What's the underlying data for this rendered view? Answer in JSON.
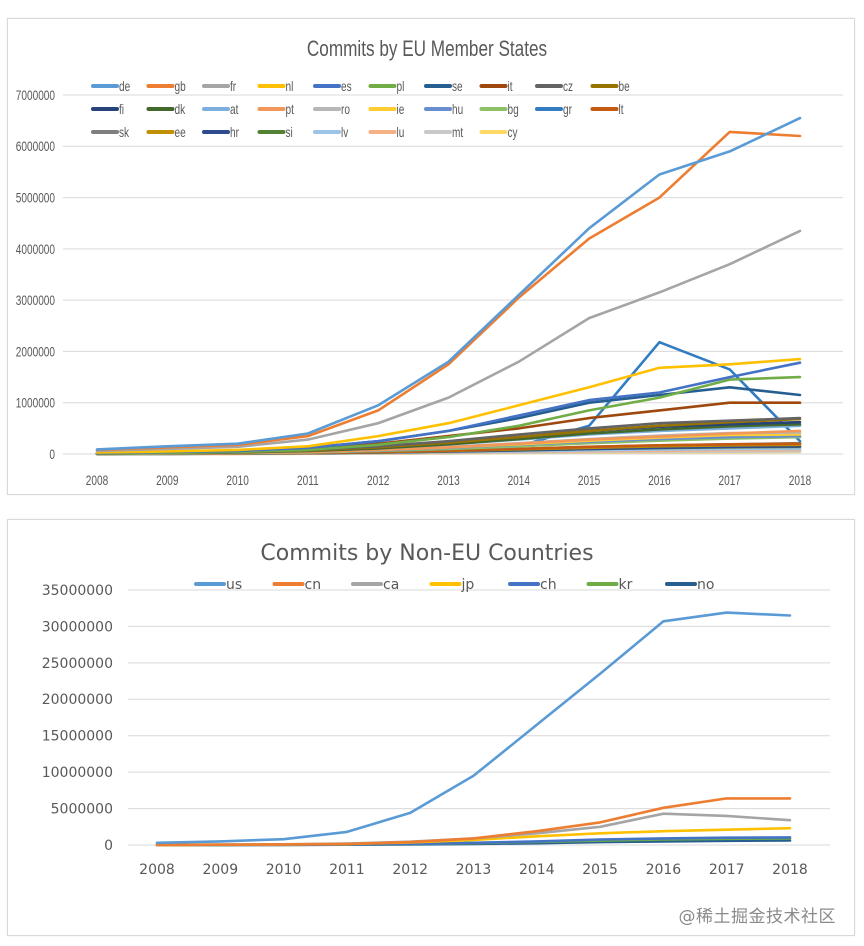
{
  "chart_data": [
    {
      "type": "line",
      "title": "Commits by EU Member States",
      "xlabel": "",
      "ylabel": "",
      "x": [
        "2008",
        "2009",
        "2010",
        "2011",
        "2012",
        "2013",
        "2014",
        "2015",
        "2016",
        "2017",
        "2018"
      ],
      "ylim": [
        0,
        7000000
      ],
      "yticks": [
        0,
        1000000,
        2000000,
        3000000,
        4000000,
        5000000,
        6000000,
        7000000
      ],
      "ytick_labels": [
        "0",
        "1000000",
        "2000000",
        "3000000",
        "4000000",
        "5000000",
        "6000000",
        "7000000"
      ],
      "grid": true,
      "legend_position": "top",
      "series": [
        {
          "name": "de",
          "color": "#5b9bd5",
          "values": [
            90000,
            150000,
            200000,
            400000,
            950000,
            1800000,
            3100000,
            4400000,
            5450000,
            5900000,
            6550000
          ]
        },
        {
          "name": "gb",
          "color": "#ed7d31",
          "values": [
            80000,
            130000,
            180000,
            350000,
            850000,
            1750000,
            3050000,
            4200000,
            5000000,
            6280000,
            6200000
          ]
        },
        {
          "name": "fr",
          "color": "#a5a5a5",
          "values": [
            60000,
            100000,
            140000,
            280000,
            600000,
            1100000,
            1800000,
            2650000,
            3150000,
            3700000,
            4350000
          ]
        },
        {
          "name": "nl",
          "color": "#ffc000",
          "values": [
            30000,
            50000,
            80000,
            150000,
            350000,
            600000,
            950000,
            1300000,
            1680000,
            1750000,
            1850000
          ]
        },
        {
          "name": "es",
          "color": "#4472c4",
          "values": [
            20000,
            40000,
            60000,
            120000,
            250000,
            450000,
            750000,
            1050000,
            1200000,
            1500000,
            1780000
          ]
        },
        {
          "name": "pl",
          "color": "#70ad47",
          "values": [
            10000,
            20000,
            40000,
            80000,
            180000,
            330000,
            550000,
            850000,
            1100000,
            1450000,
            1500000
          ]
        },
        {
          "name": "se",
          "color": "#255e91",
          "values": [
            20000,
            40000,
            60000,
            120000,
            250000,
            450000,
            700000,
            1000000,
            1150000,
            1300000,
            1150000
          ]
        },
        {
          "name": "it",
          "color": "#9e480e",
          "values": [
            15000,
            30000,
            50000,
            100000,
            200000,
            350000,
            500000,
            700000,
            850000,
            1000000,
            1000000
          ]
        },
        {
          "name": "cz",
          "color": "#636363",
          "values": [
            10000,
            20000,
            40000,
            80000,
            150000,
            250000,
            380000,
            500000,
            600000,
            650000,
            700000
          ]
        },
        {
          "name": "be",
          "color": "#997300",
          "values": [
            10000,
            20000,
            35000,
            70000,
            130000,
            220000,
            330000,
            450000,
            550000,
            620000,
            680000
          ]
        },
        {
          "name": "fi",
          "color": "#264478",
          "values": [
            10000,
            20000,
            35000,
            70000,
            130000,
            220000,
            330000,
            450000,
            530000,
            580000,
            620000
          ]
        },
        {
          "name": "dk",
          "color": "#43682b",
          "values": [
            10000,
            15000,
            30000,
            60000,
            110000,
            190000,
            290000,
            400000,
            480000,
            540000,
            580000
          ]
        },
        {
          "name": "at",
          "color": "#7cafdd",
          "values": [
            10000,
            15000,
            30000,
            60000,
            110000,
            190000,
            280000,
            380000,
            450000,
            500000,
            550000
          ]
        },
        {
          "name": "pt",
          "color": "#f1975a",
          "values": [
            5000,
            10000,
            20000,
            40000,
            80000,
            130000,
            200000,
            280000,
            340000,
            400000,
            450000
          ]
        },
        {
          "name": "ro",
          "color": "#b7b7b7",
          "values": [
            5000,
            10000,
            20000,
            40000,
            80000,
            140000,
            210000,
            290000,
            360000,
            410000,
            420000
          ]
        },
        {
          "name": "ie",
          "color": "#ffcd33",
          "values": [
            5000,
            10000,
            20000,
            40000,
            80000,
            130000,
            190000,
            260000,
            320000,
            370000,
            380000
          ]
        },
        {
          "name": "hu",
          "color": "#698ed0",
          "values": [
            5000,
            10000,
            20000,
            40000,
            70000,
            120000,
            180000,
            240000,
            290000,
            330000,
            350000
          ]
        },
        {
          "name": "bg",
          "color": "#8cc168",
          "values": [
            5000,
            10000,
            15000,
            30000,
            60000,
            100000,
            150000,
            210000,
            260000,
            300000,
            330000
          ]
        },
        {
          "name": "gr",
          "color": "#327dc2",
          "values": [
            5000,
            10000,
            15000,
            30000,
            60000,
            100000,
            150000,
            550000,
            2180000,
            1650000,
            250000
          ]
        },
        {
          "name": "lt",
          "color": "#c55a11",
          "values": [
            3000,
            6000,
            10000,
            20000,
            40000,
            70000,
            100000,
            140000,
            170000,
            190000,
            200000
          ]
        },
        {
          "name": "sk",
          "color": "#7f7f7f",
          "values": [
            3000,
            6000,
            10000,
            20000,
            40000,
            70000,
            100000,
            140000,
            170000,
            190000,
            210000
          ]
        },
        {
          "name": "ee",
          "color": "#bf9000",
          "values": [
            3000,
            6000,
            10000,
            20000,
            35000,
            60000,
            90000,
            120000,
            150000,
            170000,
            180000
          ]
        },
        {
          "name": "hr",
          "color": "#2f4b8f",
          "values": [
            2000,
            4000,
            8000,
            15000,
            30000,
            50000,
            75000,
            100000,
            120000,
            140000,
            150000
          ]
        },
        {
          "name": "si",
          "color": "#548235",
          "values": [
            2000,
            4000,
            8000,
            15000,
            30000,
            50000,
            70000,
            95000,
            115000,
            130000,
            140000
          ]
        },
        {
          "name": "lv",
          "color": "#9dc3e6",
          "values": [
            1000,
            3000,
            5000,
            10000,
            20000,
            35000,
            50000,
            70000,
            85000,
            95000,
            100000
          ]
        },
        {
          "name": "lu",
          "color": "#f4b183",
          "values": [
            1000,
            2000,
            4000,
            8000,
            15000,
            25000,
            40000,
            55000,
            65000,
            75000,
            80000
          ]
        },
        {
          "name": "mt",
          "color": "#c9c9c9",
          "values": [
            500,
            1000,
            2000,
            5000,
            10000,
            15000,
            25000,
            35000,
            40000,
            45000,
            50000
          ]
        },
        {
          "name": "cy",
          "color": "#ffd966",
          "values": [
            500,
            1000,
            2000,
            4000,
            8000,
            12000,
            20000,
            28000,
            32000,
            36000,
            40000
          ]
        }
      ]
    },
    {
      "type": "line",
      "title": "Commits by Non-EU Countries",
      "xlabel": "",
      "ylabel": "",
      "x": [
        "2008",
        "2009",
        "2010",
        "2011",
        "2012",
        "2013",
        "2014",
        "2015",
        "2016",
        "2017",
        "2018"
      ],
      "ylim": [
        0,
        35000000
      ],
      "yticks": [
        0,
        5000000,
        10000000,
        15000000,
        20000000,
        25000000,
        30000000,
        35000000
      ],
      "ytick_labels": [
        "0",
        "5000000",
        "10000000",
        "15000000",
        "20000000",
        "25000000",
        "30000000",
        "35000000"
      ],
      "grid": true,
      "legend_position": "top",
      "series": [
        {
          "name": "us",
          "color": "#5b9bd5",
          "values": [
            300000,
            500000,
            800000,
            1800000,
            4400000,
            9500000,
            16500000,
            23500000,
            30700000,
            31900000,
            31500000
          ]
        },
        {
          "name": "cn",
          "color": "#ed7d31",
          "values": [
            20000,
            40000,
            80000,
            150000,
            400000,
            900000,
            1900000,
            3100000,
            5100000,
            6400000,
            6400000
          ]
        },
        {
          "name": "ca",
          "color": "#a5a5a5",
          "values": [
            30000,
            50000,
            100000,
            200000,
            450000,
            900000,
            1600000,
            2500000,
            4300000,
            4000000,
            3400000
          ]
        },
        {
          "name": "jp",
          "color": "#ffc000",
          "values": [
            20000,
            40000,
            80000,
            150000,
            350000,
            700000,
            1200000,
            1600000,
            1900000,
            2100000,
            2300000
          ]
        },
        {
          "name": "ch",
          "color": "#4472c4",
          "values": [
            10000,
            20000,
            40000,
            80000,
            150000,
            300000,
            500000,
            750000,
            900000,
            1000000,
            1050000
          ]
        },
        {
          "name": "kr",
          "color": "#70ad47",
          "values": [
            10000,
            20000,
            30000,
            60000,
            120000,
            250000,
            420000,
            600000,
            750000,
            850000,
            900000
          ]
        },
        {
          "name": "no",
          "color": "#255e91",
          "values": [
            5000,
            10000,
            20000,
            40000,
            80000,
            150000,
            250000,
            400000,
            500000,
            580000,
            620000
          ]
        }
      ]
    }
  ],
  "watermark": "@稀土掘金技术社区"
}
